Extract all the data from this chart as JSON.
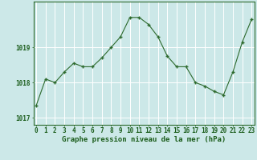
{
  "hours": [
    0,
    1,
    2,
    3,
    4,
    5,
    6,
    7,
    8,
    9,
    10,
    11,
    12,
    13,
    14,
    15,
    16,
    17,
    18,
    19,
    20,
    21,
    22,
    23
  ],
  "pressure": [
    1017.35,
    1018.1,
    1018.0,
    1018.3,
    1018.55,
    1018.45,
    1018.45,
    1018.7,
    1019.0,
    1019.3,
    1019.85,
    1019.85,
    1019.65,
    1019.3,
    1018.75,
    1018.45,
    1018.45,
    1018.0,
    1017.9,
    1017.75,
    1017.65,
    1018.3,
    1019.15,
    1019.8
  ],
  "line_color": "#2d6a2d",
  "marker_color": "#2d6a2d",
  "bg_color": "#cce8e8",
  "grid_color": "#ffffff",
  "ylabel_ticks": [
    1017,
    1018,
    1019
  ],
  "ylim": [
    1016.8,
    1020.3
  ],
  "xlabel": "Graphe pression niveau de la mer (hPa)",
  "xlabel_color": "#1a5c1a",
  "xlabel_fontsize": 6.5,
  "tick_fontsize": 5.5,
  "tick_color": "#1a5c1a",
  "border_color": "#2d6a2d"
}
